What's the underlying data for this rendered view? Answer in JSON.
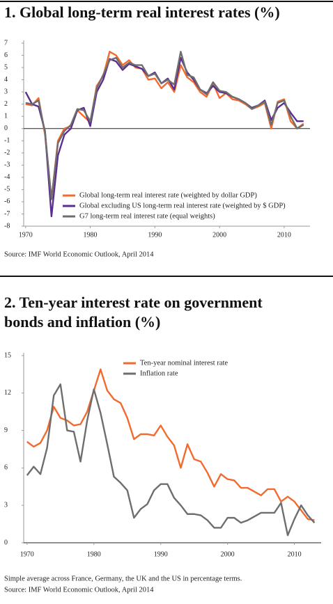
{
  "chart_data": [
    {
      "type": "line",
      "title": "1. Global long-term real interest rates (%)",
      "x": [
        1970,
        1971,
        1972,
        1973,
        1974,
        1975,
        1976,
        1977,
        1978,
        1979,
        1980,
        1981,
        1982,
        1983,
        1984,
        1985,
        1986,
        1987,
        1988,
        1989,
        1990,
        1991,
        1992,
        1993,
        1994,
        1995,
        1996,
        1997,
        1998,
        1999,
        2000,
        2001,
        2002,
        2003,
        2004,
        2005,
        2006,
        2007,
        2008,
        2009,
        2010,
        2011,
        2012,
        2013
      ],
      "series": [
        {
          "name": "Global long-term real interest rate (weighted by dollar GDP)",
          "color": "#f26a2e",
          "values": [
            2.0,
            1.9,
            2.5,
            -0.5,
            -5.8,
            -1.0,
            0.0,
            0.2,
            1.5,
            1.0,
            0.5,
            3.5,
            4.3,
            6.3,
            6.0,
            5.2,
            5.6,
            5.0,
            4.9,
            4.0,
            4.1,
            3.3,
            3.8,
            3.0,
            5.2,
            4.2,
            3.8,
            3.0,
            2.6,
            3.7,
            2.5,
            2.9,
            2.4,
            2.3,
            2.0,
            1.6,
            1.8,
            2.1,
            0.0,
            2.2,
            2.4,
            0.6,
            0.0,
            0.4
          ]
        },
        {
          "name": "Global excluding US long-term real interest rate (weighted by $ GDP)",
          "color": "#5b2d91",
          "values": [
            3.0,
            2.0,
            1.8,
            -0.2,
            -7.2,
            -2.2,
            -0.5,
            0.0,
            1.5,
            1.7,
            0.2,
            3.0,
            4.0,
            5.7,
            5.5,
            4.8,
            5.3,
            5.1,
            4.9,
            4.3,
            4.6,
            3.7,
            4.1,
            3.2,
            5.8,
            4.6,
            4.0,
            3.2,
            2.9,
            3.5,
            3.0,
            2.9,
            2.6,
            2.4,
            2.1,
            1.7,
            1.9,
            2.3,
            0.7,
            1.7,
            2.1,
            1.3,
            0.6,
            0.6
          ]
        },
        {
          "name": "G7 long-term real interest rate (equal weights)",
          "color": "#6e6e6e",
          "values": [
            2.1,
            2.0,
            2.3,
            -0.3,
            -5.8,
            -1.2,
            -0.2,
            0.3,
            1.6,
            1.5,
            0.6,
            3.3,
            4.4,
            5.6,
            5.8,
            5.0,
            5.4,
            5.2,
            5.2,
            4.3,
            4.5,
            3.7,
            4.0,
            3.6,
            6.3,
            4.4,
            4.2,
            3.2,
            2.8,
            3.8,
            3.1,
            3.0,
            2.6,
            2.4,
            2.1,
            1.6,
            1.9,
            2.2,
            0.3,
            2.1,
            2.3,
            1.0,
            0.0,
            0.3
          ]
        }
      ],
      "xlim": [
        1969.7,
        2014
      ],
      "xticks": [
        1970,
        1980,
        1990,
        2000,
        2010
      ],
      "ylim": [
        -8,
        7
      ],
      "yticks": [
        -8,
        -7,
        -6,
        -5,
        -4,
        -3,
        -2,
        -1,
        0,
        1,
        2,
        3,
        4,
        5,
        6,
        7
      ],
      "source": "Source: IMF World Economic Outlook, April 2014"
    },
    {
      "type": "line",
      "title": "2. Ten-year interest rate on government bonds and inflation (%)",
      "x": [
        1970,
        1971,
        1972,
        1973,
        1974,
        1975,
        1976,
        1977,
        1978,
        1979,
        1980,
        1981,
        1982,
        1983,
        1984,
        1985,
        1986,
        1987,
        1988,
        1989,
        1990,
        1991,
        1992,
        1993,
        1994,
        1995,
        1996,
        1997,
        1998,
        1999,
        2000,
        2001,
        2002,
        2003,
        2004,
        2005,
        2006,
        2007,
        2008,
        2009,
        2010,
        2011,
        2012,
        2013
      ],
      "series": [
        {
          "name": "Ten-year nominal interest rate",
          "color": "#f26a2e",
          "values": [
            8.1,
            7.7,
            8.0,
            9.0,
            10.9,
            10.0,
            9.8,
            9.4,
            9.5,
            10.5,
            12.2,
            13.9,
            12.2,
            11.5,
            11.2,
            10.0,
            8.3,
            8.7,
            8.7,
            8.6,
            9.4,
            8.5,
            7.8,
            6.0,
            7.9,
            6.7,
            6.5,
            5.6,
            4.5,
            5.5,
            5.1,
            5.0,
            4.4,
            4.4,
            4.1,
            3.8,
            4.3,
            4.3,
            3.3,
            3.7,
            3.3,
            2.6,
            1.9,
            1.8
          ]
        },
        {
          "name": "Inflation rate",
          "color": "#6e6e6e",
          "values": [
            5.4,
            6.1,
            5.5,
            7.6,
            11.8,
            12.7,
            9.0,
            8.9,
            6.5,
            9.8,
            12.3,
            10.4,
            7.9,
            5.3,
            4.8,
            4.2,
            2.0,
            2.7,
            3.1,
            4.2,
            4.7,
            4.7,
            3.6,
            3.0,
            2.3,
            2.3,
            2.2,
            1.8,
            1.2,
            1.2,
            2.0,
            2.0,
            1.6,
            1.8,
            2.1,
            2.4,
            2.4,
            2.4,
            3.2,
            0.6,
            1.9,
            3.0,
            2.2,
            1.6
          ]
        }
      ],
      "xlim": [
        1969.5,
        2014
      ],
      "xticks": [
        1970,
        1980,
        1990,
        2000,
        2010
      ],
      "ylim": [
        0,
        15
      ],
      "yticks": [
        0,
        3,
        6,
        9,
        12,
        15
      ],
      "note": "Simple average across France, Germany, the UK and the US in percentage terms.",
      "source": "Source: IMF World Economic Outlook, April 2014"
    }
  ]
}
